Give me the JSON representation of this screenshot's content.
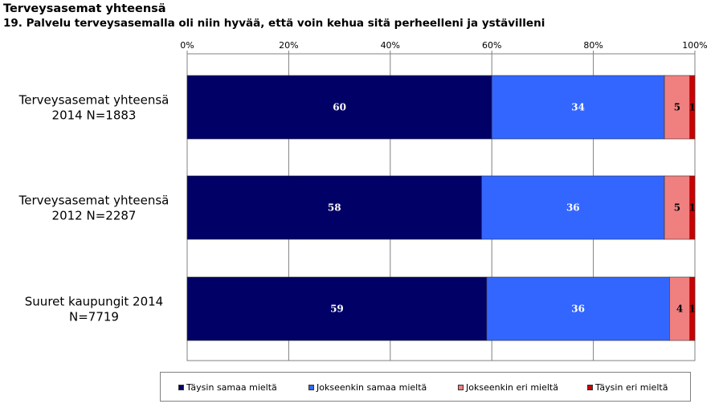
{
  "title": "Terveysasemat yhteensä",
  "subtitle": "19. Palvelu terveysasemalla oli niin hyvää, että voin kehua sitä perheelleni ja ystävilleni",
  "chart_data": {
    "type": "bar",
    "orientation": "horizontal",
    "stacked": "percent",
    "categories": [
      [
        "Terveysasemat yhteensä",
        "2014 N=1883"
      ],
      [
        "Terveysasemat yhteensä",
        "2012 N=2287"
      ],
      [
        "Suuret kaupungit 2014",
        "N=7719"
      ]
    ],
    "series": [
      {
        "name": "Täysin samaa mieltä",
        "color": "#000066",
        "values": [
          60,
          58,
          59
        ]
      },
      {
        "name": "Jokseenkin samaa mieltä",
        "color": "#3366ff",
        "values": [
          34,
          36,
          36
        ]
      },
      {
        "name": "Jokseenkin eri mieltä",
        "color": "#f08080",
        "values": [
          5,
          5,
          4
        ]
      },
      {
        "name": "Täysin eri mieltä",
        "color": "#cc0000",
        "values": [
          1,
          1,
          1
        ]
      }
    ],
    "xticks": [
      "0%",
      "20%",
      "40%",
      "60%",
      "80%",
      "100%"
    ],
    "xlim": [
      0,
      100
    ],
    "grid": true,
    "legend_position": "bottom"
  }
}
